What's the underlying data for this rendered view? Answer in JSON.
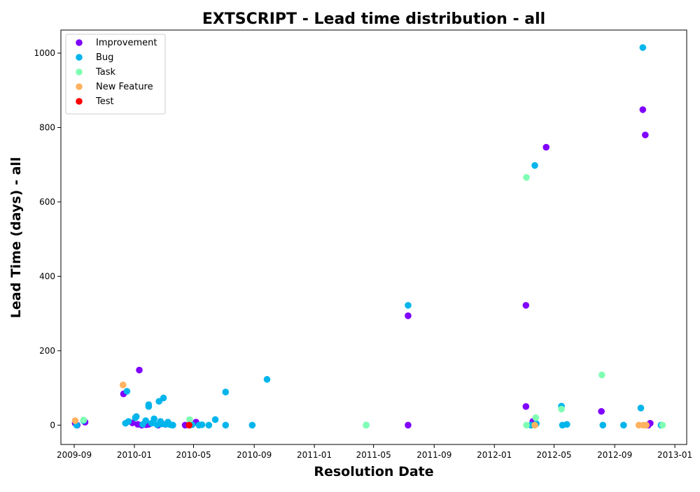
{
  "chart_data": {
    "type": "scatter",
    "title": "EXTSCRIPT - Lead time distribution - all",
    "xlabel": "Resolution Date",
    "ylabel": "Lead Time (days) - all",
    "xlim": [
      "2009-08-05",
      "2013-01-25"
    ],
    "ylim": [
      -52,
      1062
    ],
    "x_ticks": [
      "2009-09",
      "2010-01",
      "2010-05",
      "2010-09",
      "2011-01",
      "2011-05",
      "2011-09",
      "2012-01",
      "2012-05",
      "2012-09",
      "2013-01"
    ],
    "y_ticks": [
      0,
      200,
      400,
      600,
      800,
      1000
    ],
    "grid": false,
    "legend_position": "top-left",
    "series": [
      {
        "name": "Improvement",
        "color": "#8000ff",
        "points": [
          [
            "2009-09-03",
            5
          ],
          [
            "2009-09-07",
            0
          ],
          [
            "2009-09-23",
            8
          ],
          [
            "2009-12-10",
            84
          ],
          [
            "2009-12-28",
            6
          ],
          [
            "2010-01-08",
            2
          ],
          [
            "2010-01-11",
            148
          ],
          [
            "2010-01-16",
            0
          ],
          [
            "2010-01-25",
            1
          ],
          [
            "2010-01-30",
            2
          ],
          [
            "2010-02-18",
            0
          ],
          [
            "2010-03-05",
            2
          ],
          [
            "2010-04-14",
            0
          ],
          [
            "2010-05-06",
            8
          ],
          [
            "2011-07-10",
            294
          ],
          [
            "2011-07-10",
            0
          ],
          [
            "2012-03-05",
            322
          ],
          [
            "2012-03-05",
            50
          ],
          [
            "2012-03-19",
            10
          ],
          [
            "2012-04-15",
            747
          ],
          [
            "2012-08-05",
            37
          ],
          [
            "2012-10-28",
            848
          ],
          [
            "2012-11-02",
            780
          ],
          [
            "2012-11-08",
            0
          ],
          [
            "2012-11-12",
            5
          ]
        ]
      },
      {
        "name": "Bug",
        "color": "#00b5eb",
        "points": [
          [
            "2009-09-06",
            0
          ],
          [
            "2009-09-20",
            12
          ],
          [
            "2009-12-14",
            5
          ],
          [
            "2009-12-17",
            91
          ],
          [
            "2009-12-20",
            10
          ],
          [
            "2010-01-03",
            20
          ],
          [
            "2010-01-05",
            23
          ],
          [
            "2010-01-18",
            2
          ],
          [
            "2010-01-24",
            12
          ],
          [
            "2010-01-30",
            55
          ],
          [
            "2010-01-30",
            50
          ],
          [
            "2010-02-05",
            5
          ],
          [
            "2010-02-10",
            17
          ],
          [
            "2010-02-16",
            1
          ],
          [
            "2010-02-20",
            64
          ],
          [
            "2010-02-23",
            10
          ],
          [
            "2010-02-25",
            3
          ],
          [
            "2010-03-01",
            73
          ],
          [
            "2010-03-06",
            2
          ],
          [
            "2010-03-10",
            8
          ],
          [
            "2010-03-15",
            1
          ],
          [
            "2010-03-20",
            0
          ],
          [
            "2010-04-23",
            0
          ],
          [
            "2010-04-28",
            1
          ],
          [
            "2010-05-12",
            0
          ],
          [
            "2010-05-18",
            1
          ],
          [
            "2010-06-01",
            0
          ],
          [
            "2010-06-14",
            15
          ],
          [
            "2010-07-05",
            89
          ],
          [
            "2010-07-05",
            0
          ],
          [
            "2010-08-28",
            0
          ],
          [
            "2010-09-27",
            123
          ],
          [
            "2011-04-16",
            0
          ],
          [
            "2011-07-10",
            322
          ],
          [
            "2012-03-15",
            0
          ],
          [
            "2012-03-23",
            698
          ],
          [
            "2012-03-26",
            4
          ],
          [
            "2012-05-16",
            51
          ],
          [
            "2012-05-18",
            0
          ],
          [
            "2012-05-27",
            2
          ],
          [
            "2012-08-08",
            0
          ],
          [
            "2012-09-19",
            0
          ],
          [
            "2012-10-24",
            46
          ],
          [
            "2012-10-28",
            1015
          ],
          [
            "2012-12-04",
            0
          ]
        ]
      },
      {
        "name": "Task",
        "color": "#80ffb4",
        "points": [
          [
            "2009-09-20",
            14
          ],
          [
            "2010-04-23",
            15
          ],
          [
            "2011-04-16",
            0
          ],
          [
            "2012-03-06",
            666
          ],
          [
            "2012-03-06",
            0
          ],
          [
            "2012-03-25",
            20
          ],
          [
            "2012-05-16",
            43
          ],
          [
            "2012-08-06",
            135
          ],
          [
            "2012-12-07",
            0
          ]
        ]
      },
      {
        "name": "New Feature",
        "color": "#ffb360",
        "points": [
          [
            "2009-09-03",
            12
          ],
          [
            "2009-12-09",
            108
          ],
          [
            "2012-03-23",
            0
          ],
          [
            "2012-10-20",
            0
          ],
          [
            "2012-10-29",
            0
          ],
          [
            "2012-11-04",
            0
          ]
        ]
      },
      {
        "name": "Test",
        "color": "#ff0000",
        "points": [
          [
            "2010-04-22",
            0
          ]
        ]
      }
    ]
  }
}
